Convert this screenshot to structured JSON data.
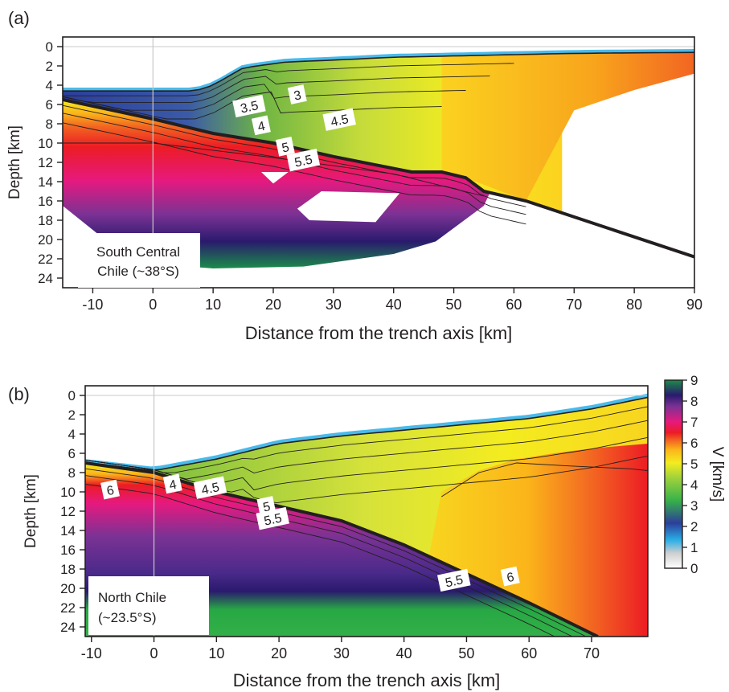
{
  "chart_data": [
    {
      "panel": "(a)",
      "type": "heatmap",
      "xlabel": "Distance from the trench axis [km]",
      "ylabel": "Depth [km]",
      "xlim": [
        -15,
        90
      ],
      "ylim": [
        25,
        -1
      ],
      "xticks": [
        -10,
        0,
        10,
        20,
        30,
        40,
        50,
        60,
        70,
        80,
        90
      ],
      "yticks": [
        0,
        2,
        4,
        6,
        8,
        10,
        12,
        14,
        16,
        18,
        20,
        22,
        24
      ],
      "region_label": [
        "South Central",
        "Chile (~38°S)"
      ],
      "contour_labels": [
        {
          "text": "3",
          "x": 24,
          "y": 5.0
        },
        {
          "text": "3.5",
          "x": 16,
          "y": 6.2
        },
        {
          "text": "4",
          "x": 18,
          "y": 8.2
        },
        {
          "text": "4.5",
          "x": 31,
          "y": 7.6
        },
        {
          "text": "5",
          "x": 22,
          "y": 10.4
        },
        {
          "text": "5.5",
          "x": 25,
          "y": 11.8
        }
      ],
      "plate_interface": [
        [
          -15,
          5.5
        ],
        [
          0,
          7.5
        ],
        [
          10,
          9.0
        ],
        [
          20,
          10.0
        ],
        [
          30,
          11.4
        ],
        [
          43,
          13.0
        ],
        [
          48,
          13.0
        ],
        [
          52,
          13.6
        ],
        [
          55,
          15.0
        ],
        [
          62,
          16.0
        ],
        [
          90,
          21.8
        ]
      ],
      "surfaces": {
        "seafloor": [
          [
            -15,
            4.6
          ],
          [
            0,
            4.6
          ],
          [
            7,
            4.6
          ],
          [
            10,
            4.0
          ],
          [
            15,
            2.2
          ],
          [
            22,
            1.6
          ],
          [
            30,
            1.4
          ],
          [
            40,
            1.1
          ],
          [
            55,
            0.9
          ],
          [
            70,
            0.7
          ],
          [
            90,
            0.6
          ]
        ],
        "model_base": [
          [
            -15,
            16.5
          ],
          [
            -8,
            20.0
          ],
          [
            0,
            22.5
          ],
          [
            10,
            23.0
          ],
          [
            25,
            22.8
          ],
          [
            40,
            21.5
          ],
          [
            47,
            20.2
          ],
          [
            55,
            16.5
          ]
        ]
      }
    },
    {
      "panel": "(b)",
      "type": "heatmap",
      "xlabel": "Distance from the trench axis [km]",
      "ylabel": "Depth [km]",
      "xlim": [
        -11,
        79
      ],
      "ylim": [
        25,
        -1
      ],
      "xticks": [
        -10,
        0,
        10,
        20,
        30,
        40,
        50,
        60,
        70
      ],
      "yticks": [
        0,
        2,
        4,
        6,
        8,
        10,
        12,
        14,
        16,
        18,
        20,
        22,
        24
      ],
      "region_label": [
        "North Chile",
        "(~23.5°S)"
      ],
      "contour_labels": [
        {
          "text": "6",
          "x": -7,
          "y": 9.8
        },
        {
          "text": "4",
          "x": 3,
          "y": 9.2
        },
        {
          "text": "4.5",
          "x": 9,
          "y": 9.6
        },
        {
          "text": "5",
          "x": 18,
          "y": 11.5
        },
        {
          "text": "5.5",
          "x": 19,
          "y": 12.8
        },
        {
          "text": "5.5",
          "x": 48,
          "y": 19.2
        },
        {
          "text": "6",
          "x": 57,
          "y": 18.8
        }
      ],
      "plate_interface": [
        [
          -11,
          7.0
        ],
        [
          0,
          8.0
        ],
        [
          10,
          10.0
        ],
        [
          20,
          11.5
        ],
        [
          30,
          13.0
        ],
        [
          40,
          15.5
        ],
        [
          50,
          18.5
        ],
        [
          60,
          21.5
        ],
        [
          71,
          25.0
        ]
      ],
      "surfaces": {
        "seafloor": [
          [
            -11,
            7.0
          ],
          [
            0,
            7.8
          ],
          [
            5,
            7.2
          ],
          [
            10,
            6.6
          ],
          [
            20,
            5.0
          ],
          [
            30,
            4.2
          ],
          [
            40,
            3.6
          ],
          [
            50,
            3.0
          ],
          [
            60,
            2.4
          ],
          [
            70,
            1.4
          ],
          [
            79,
            0.2
          ]
        ]
      }
    }
  ],
  "colorbar": {
    "label": "V [km/s]",
    "ticks": [
      0,
      1,
      2,
      3,
      4,
      5,
      6,
      7,
      8,
      9
    ],
    "range": [
      0,
      9
    ],
    "colors": [
      "#ffffff",
      "#d8d8d8",
      "#29aee6",
      "#2c3e9a",
      "#37b24a",
      "#9fd23c",
      "#f4ec1f",
      "#fbb51a",
      "#f26522",
      "#ec1c24",
      "#e6197f",
      "#7b3294",
      "#2a1a6e",
      "#1b8c4a"
    ]
  },
  "palette": {
    "water": "#29aee6",
    "deep_blue": "#2c3e9a",
    "green": "#8ec63f",
    "yellow": "#f4ec1f",
    "orange": "#fbb51a",
    "red": "#ec1c24",
    "magenta": "#e6197f",
    "purple": "#7b3294",
    "navy": "#2a1a6e",
    "mantle_green": "#27a844"
  }
}
